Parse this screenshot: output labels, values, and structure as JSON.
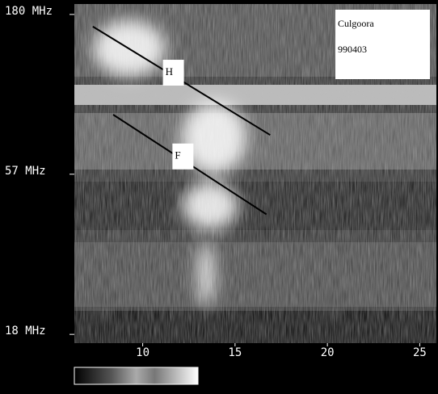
{
  "chart_data": {
    "type": "spectrogram",
    "station": "Culgoora",
    "date": "990403",
    "xlim": [
      6.3,
      25.9
    ],
    "xticks": [
      10,
      15,
      20,
      25
    ],
    "ylim": [
      16.9,
      194
    ],
    "log_y": true,
    "yticks": [
      {
        "value": 180,
        "label": "180 MHz"
      },
      {
        "value": 57,
        "label": "57 MHz"
      },
      {
        "value": 18,
        "label": "18 MHz"
      }
    ],
    "annotations": [
      {
        "label": "H",
        "color": "#000000",
        "x": [
          7.3,
          16.9
        ],
        "y": [
          165,
          75.6
        ]
      },
      {
        "label": "F",
        "color": "#000000",
        "x": [
          8.4,
          16.7
        ],
        "y": [
          87.5,
          42.7
        ]
      }
    ]
  }
}
